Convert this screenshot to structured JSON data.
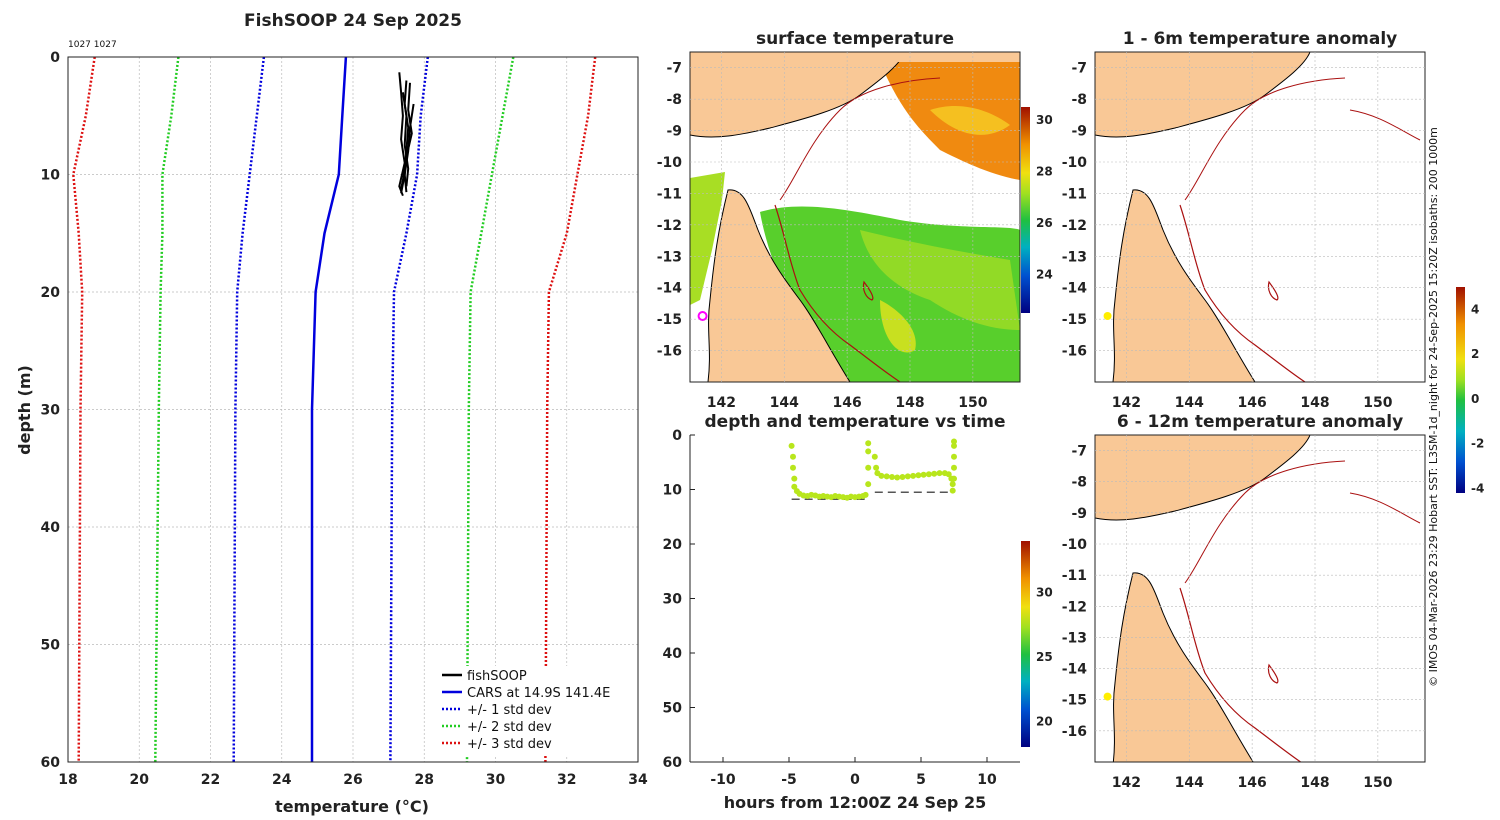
{
  "colors": {
    "fish": "#000000",
    "cars": "#0000dd",
    "sd1": "#0000dd",
    "sd2": "#22cc22",
    "sd3": "#dd1111",
    "land": "#f9c896",
    "isobath": "#aa1111",
    "grid": "#bbbbbb"
  },
  "chart_data": [
    {
      "id": "profile",
      "type": "line",
      "title": "FishSOOP 24 Sep 2025",
      "subtitle": "1027 1027",
      "xlabel": "temperature (°C)",
      "ylabel": "depth (m)",
      "xlim": [
        18,
        34
      ],
      "ylim": [
        0,
        60
      ],
      "xticks": [
        "18",
        "20",
        "22",
        "24",
        "26",
        "28",
        "30",
        "32",
        "34"
      ],
      "yticks": [
        "0",
        "10",
        "20",
        "30",
        "40",
        "50",
        "60"
      ],
      "legend": [
        "fishSOOP",
        "CARS at 14.9S 141.4E",
        "+/- 1 std dev",
        "+/- 2 std dev",
        "+/- 3 std dev"
      ],
      "legend_position": "bottom-right",
      "series": [
        {
          "name": "CARS",
          "style": "solid",
          "points": [
            [
              25.8,
              0
            ],
            [
              25.7,
              5
            ],
            [
              25.6,
              10
            ],
            [
              25.2,
              15
            ],
            [
              24.95,
              20
            ],
            [
              24.9,
              25
            ],
            [
              24.85,
              30
            ],
            [
              24.85,
              60
            ]
          ]
        },
        {
          "name": "+1 std dev",
          "style": "dotted",
          "points": [
            [
              28.1,
              0
            ],
            [
              27.9,
              5
            ],
            [
              27.8,
              10
            ],
            [
              27.5,
              15
            ],
            [
              27.15,
              20
            ],
            [
              27.1,
              30
            ],
            [
              27.05,
              60
            ]
          ]
        },
        {
          "name": "-1 std dev",
          "style": "dotted",
          "points": [
            [
              23.5,
              0
            ],
            [
              23.3,
              5
            ],
            [
              23.1,
              10
            ],
            [
              22.9,
              15
            ],
            [
              22.75,
              20
            ],
            [
              22.7,
              30
            ],
            [
              22.65,
              60
            ]
          ]
        },
        {
          "name": "+2 std dev",
          "style": "dotted",
          "points": [
            [
              30.5,
              0
            ],
            [
              30.2,
              5
            ],
            [
              29.9,
              10
            ],
            [
              29.6,
              15
            ],
            [
              29.3,
              20
            ],
            [
              29.25,
              30
            ],
            [
              29.2,
              60
            ]
          ]
        },
        {
          "name": "-2 std dev",
          "style": "dotted",
          "points": [
            [
              21.1,
              0
            ],
            [
              20.9,
              5
            ],
            [
              20.65,
              10
            ],
            [
              20.65,
              15
            ],
            [
              20.6,
              20
            ],
            [
              20.55,
              30
            ],
            [
              20.45,
              60
            ]
          ]
        },
        {
          "name": "+3 std dev",
          "style": "dotted",
          "points": [
            [
              32.8,
              0
            ],
            [
              32.6,
              5
            ],
            [
              32.3,
              10
            ],
            [
              32.0,
              15
            ],
            [
              31.5,
              20
            ],
            [
              31.45,
              30
            ],
            [
              31.4,
              60
            ]
          ]
        },
        {
          "name": "-3 std dev",
          "style": "dotted",
          "points": [
            [
              18.75,
              0
            ],
            [
              18.5,
              5
            ],
            [
              18.15,
              10
            ],
            [
              18.3,
              15
            ],
            [
              18.4,
              20
            ],
            [
              18.35,
              30
            ],
            [
              18.3,
              60
            ]
          ]
        }
      ],
      "fish_profiles": [
        [
          [
            27.3,
            1.3
          ],
          [
            27.35,
            3
          ],
          [
            27.4,
            5
          ],
          [
            27.35,
            7
          ],
          [
            27.45,
            9
          ],
          [
            27.3,
            11
          ],
          [
            27.4,
            11.8
          ]
        ],
        [
          [
            27.5,
            2
          ],
          [
            27.45,
            4
          ],
          [
            27.55,
            6
          ],
          [
            27.5,
            8
          ],
          [
            27.45,
            10
          ],
          [
            27.5,
            11.5
          ]
        ],
        [
          [
            27.6,
            2.2
          ],
          [
            27.55,
            4.5
          ],
          [
            27.65,
            6.5
          ],
          [
            27.5,
            8.5
          ],
          [
            27.4,
            10.5
          ],
          [
            27.35,
            11.2
          ]
        ],
        [
          [
            27.4,
            3
          ],
          [
            27.5,
            5
          ],
          [
            27.45,
            7.5
          ],
          [
            27.55,
            9.5
          ],
          [
            27.5,
            11
          ]
        ],
        [
          [
            27.7,
            4
          ],
          [
            27.6,
            6
          ],
          [
            27.55,
            8
          ],
          [
            27.45,
            10
          ],
          [
            27.35,
            11.6
          ]
        ]
      ]
    },
    {
      "id": "time_series",
      "type": "scatter",
      "title": "depth and temperature vs time",
      "xlabel": "hours from 12:00Z 24 Sep 25",
      "xlim": [
        -12.5,
        12.5
      ],
      "ylim": [
        0,
        60
      ],
      "xticks": [
        "-10",
        "-5",
        "0",
        "5",
        "10"
      ],
      "yticks": [
        "0",
        "10",
        "20",
        "30",
        "40",
        "50",
        "60"
      ],
      "colorbar": {
        "range": [
          18,
          34
        ],
        "ticks": [
          "20",
          "25",
          "30"
        ]
      },
      "dashed_segments": [
        [
          -4.8,
          1.0,
          11.8
        ],
        [
          1.5,
          7.5,
          10.5
        ]
      ],
      "points": [
        [
          -4.8,
          2
        ],
        [
          -4.7,
          4
        ],
        [
          -4.7,
          6
        ],
        [
          -4.6,
          8
        ],
        [
          -4.6,
          9.5
        ],
        [
          -4.4,
          10.3
        ],
        [
          -4.2,
          10.8
        ],
        [
          -3.9,
          11.1
        ],
        [
          -3.6,
          11.2
        ],
        [
          -3.3,
          11
        ],
        [
          -3.0,
          11.1
        ],
        [
          -2.7,
          11.3
        ],
        [
          -2.4,
          11.2
        ],
        [
          -2.1,
          11.3
        ],
        [
          -1.8,
          11.4
        ],
        [
          -1.5,
          11.2
        ],
        [
          -1.2,
          11.3
        ],
        [
          -0.9,
          11.4
        ],
        [
          -0.6,
          11.5
        ],
        [
          -0.3,
          11.3
        ],
        [
          0.0,
          11.4
        ],
        [
          0.3,
          11.3
        ],
        [
          0.6,
          11.2
        ],
        [
          0.8,
          11
        ],
        [
          1.0,
          9
        ],
        [
          1.0,
          6
        ],
        [
          1.0,
          3
        ],
        [
          1.0,
          1.5
        ],
        [
          1.5,
          4
        ],
        [
          1.6,
          6
        ],
        [
          1.7,
          7
        ],
        [
          2.0,
          7.5
        ],
        [
          2.4,
          7.6
        ],
        [
          2.8,
          7.7
        ],
        [
          3.2,
          7.8
        ],
        [
          3.6,
          7.7
        ],
        [
          4.0,
          7.6
        ],
        [
          4.4,
          7.5
        ],
        [
          4.8,
          7.4
        ],
        [
          5.2,
          7.3
        ],
        [
          5.6,
          7.2
        ],
        [
          6.0,
          7.1
        ],
        [
          6.4,
          7.0
        ],
        [
          6.8,
          7.0
        ],
        [
          7.1,
          7.2
        ],
        [
          7.3,
          8
        ],
        [
          7.4,
          9
        ],
        [
          7.4,
          10.2
        ],
        [
          7.5,
          8
        ],
        [
          7.5,
          6
        ],
        [
          7.5,
          4
        ],
        [
          7.5,
          2
        ],
        [
          7.5,
          1.2
        ]
      ]
    },
    {
      "id": "surface_temperature",
      "type": "heatmap",
      "title": "surface temperature",
      "xticks": [
        "142",
        "144",
        "146",
        "148",
        "150"
      ],
      "yticks": [
        "-7",
        "-8",
        "-9",
        "-10",
        "-11",
        "-12",
        "-13",
        "-14",
        "-15",
        "-16"
      ],
      "xlim": [
        141,
        151.5
      ],
      "ylim": [
        -6.5,
        -17
      ],
      "colorbar": {
        "range": [
          22.5,
          30.5
        ],
        "ticks": [
          "30",
          "28",
          "26",
          "24"
        ]
      },
      "vessel_position": [
        141.4,
        -14.9
      ]
    },
    {
      "id": "anomaly_1_6m",
      "type": "heatmap",
      "title": "1 - 6m temperature anomaly",
      "xticks": [
        "142",
        "144",
        "146",
        "148",
        "150"
      ],
      "yticks": [
        "-7",
        "-8",
        "-9",
        "-10",
        "-11",
        "-12",
        "-13",
        "-14",
        "-15",
        "-16"
      ],
      "vessel_position": [
        141.4,
        -14.9
      ]
    },
    {
      "id": "anomaly_6_12m",
      "type": "heatmap",
      "title": "6 - 12m temperature anomaly",
      "xticks": [
        "142",
        "144",
        "146",
        "148",
        "150"
      ],
      "yticks": [
        "-7",
        "-8",
        "-9",
        "-10",
        "-11",
        "-12",
        "-13",
        "-14",
        "-15",
        "-16"
      ],
      "vessel_position": [
        141.4,
        -14.9
      ]
    },
    {
      "id": "anomaly_colorbar",
      "type": "colorbar",
      "range": [
        -4.2,
        5
      ],
      "ticks": [
        "4",
        "2",
        "0",
        "-2",
        "-4"
      ]
    }
  ],
  "credit": "© IMOS 04-Mar-2026 23:29 Hobart SST: L3SM-1d_night for 24-Sep-2025 15:20Z isobaths: 200  1000m"
}
